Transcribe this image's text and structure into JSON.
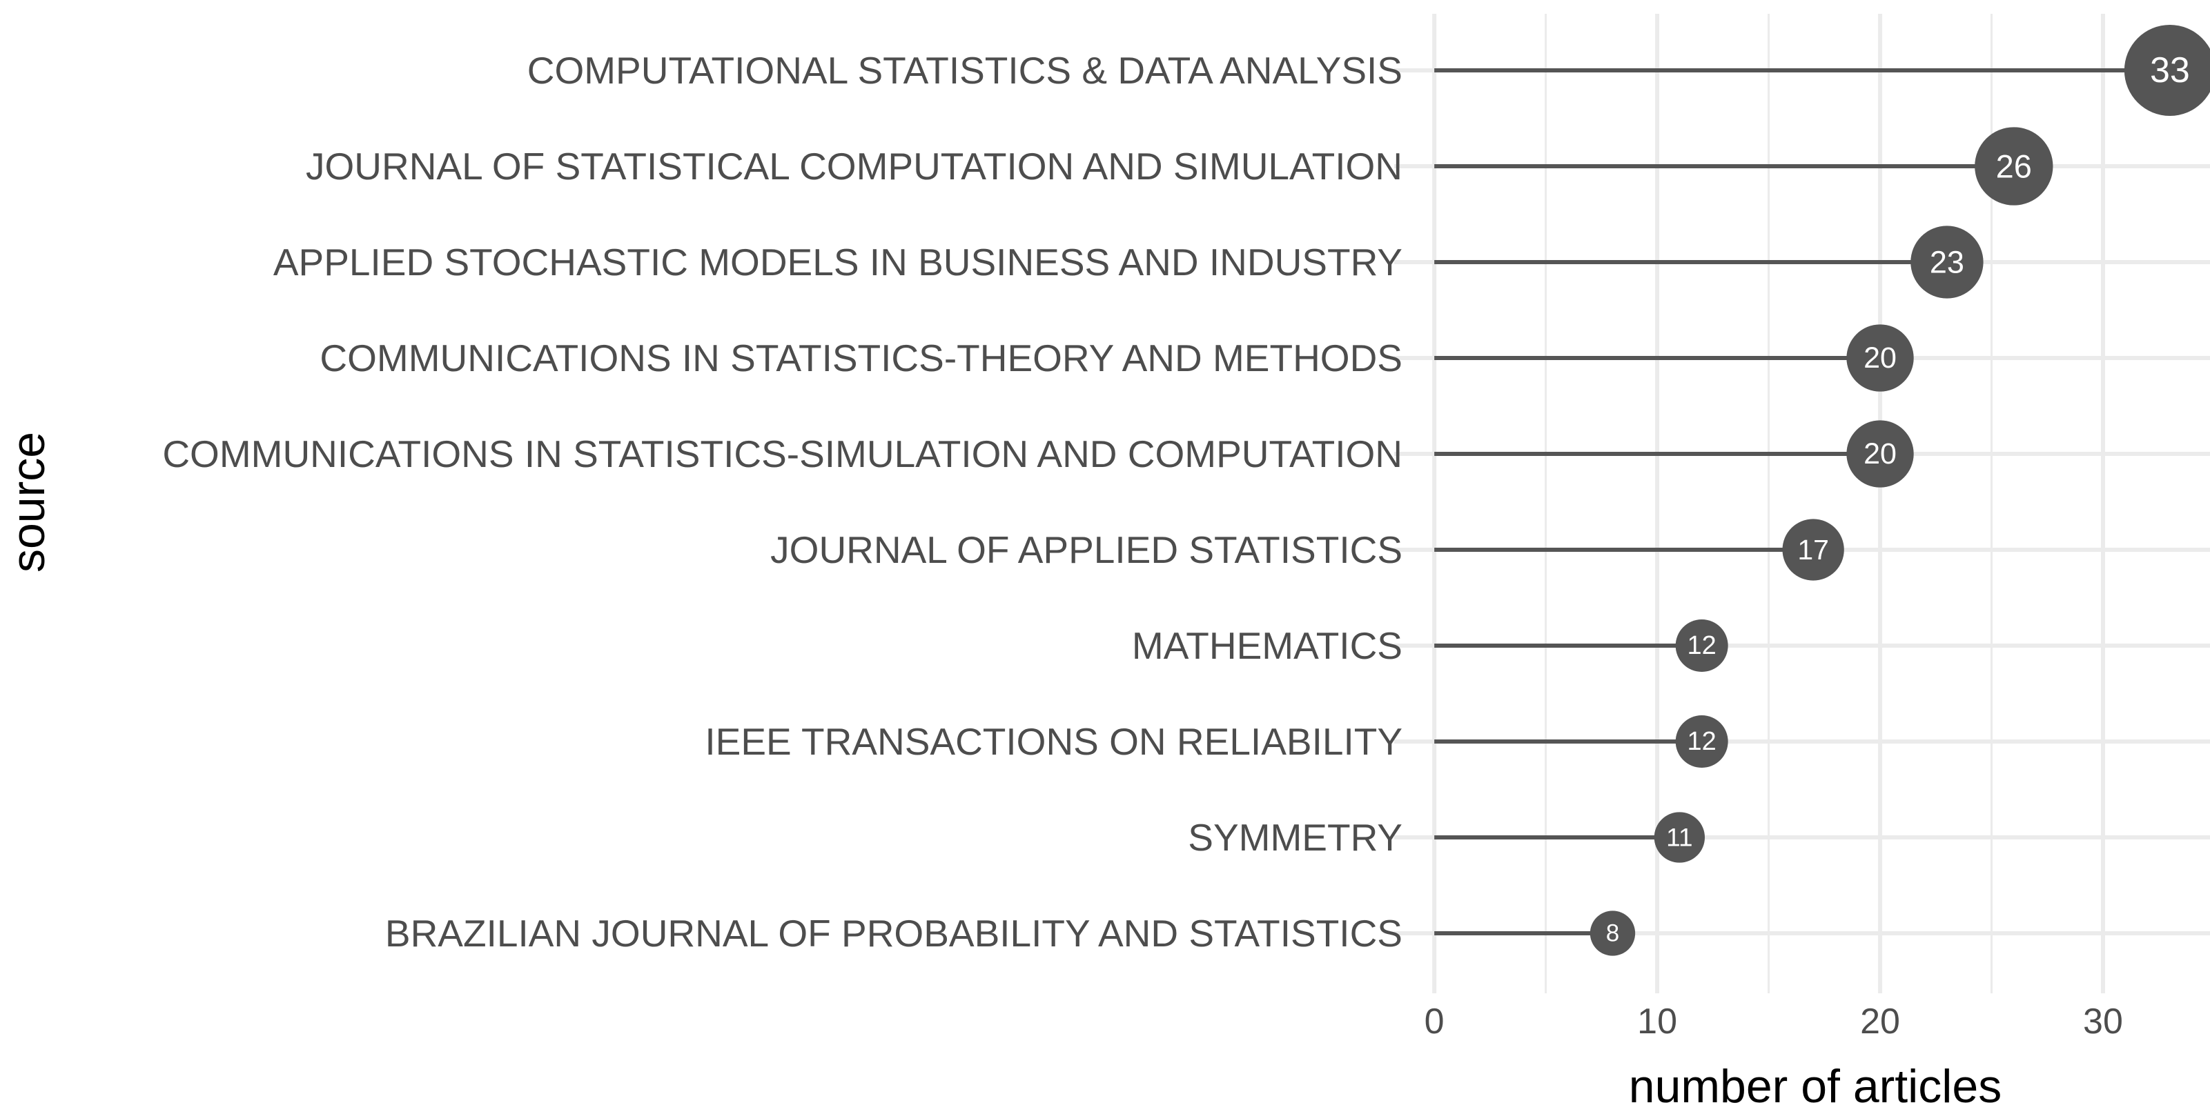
{
  "chart_data": {
    "type": "lollipop",
    "categories": [
      "COMPUTATIONAL STATISTICS  & DATA ANALYSIS",
      "JOURNAL OF STATISTICAL COMPUTATION AND SIMULATION",
      "APPLIED STOCHASTIC MODELS IN BUSINESS AND INDUSTRY",
      "COMMUNICATIONS IN STATISTICS-THEORY AND METHODS",
      "COMMUNICATIONS IN STATISTICS-SIMULATION AND COMPUTATION",
      "JOURNAL OF APPLIED STATISTICS",
      "MATHEMATICS",
      "IEEE TRANSACTIONS ON RELIABILITY",
      "SYMMETRY",
      "BRAZILIAN JOURNAL OF PROBABILITY AND STATISTICS"
    ],
    "values": [
      33,
      26,
      23,
      20,
      20,
      17,
      12,
      12,
      11,
      8
    ],
    "data_labels": [
      "33",
      "26",
      "23",
      "20",
      "20",
      "17",
      "12",
      "12",
      "11",
      "8"
    ],
    "xlabel": "number of articles",
    "ylabel": "source",
    "xticks": [
      0,
      10,
      20,
      30
    ],
    "xtick_labels": [
      "0",
      "10",
      "20",
      "30"
    ],
    "xlim": [
      -1.8,
      34.8
    ],
    "grid": true,
    "colors": {
      "marker": "#555555",
      "stem": "#555555",
      "grid": "#ebebeb",
      "label_text": "#ffffff"
    }
  }
}
